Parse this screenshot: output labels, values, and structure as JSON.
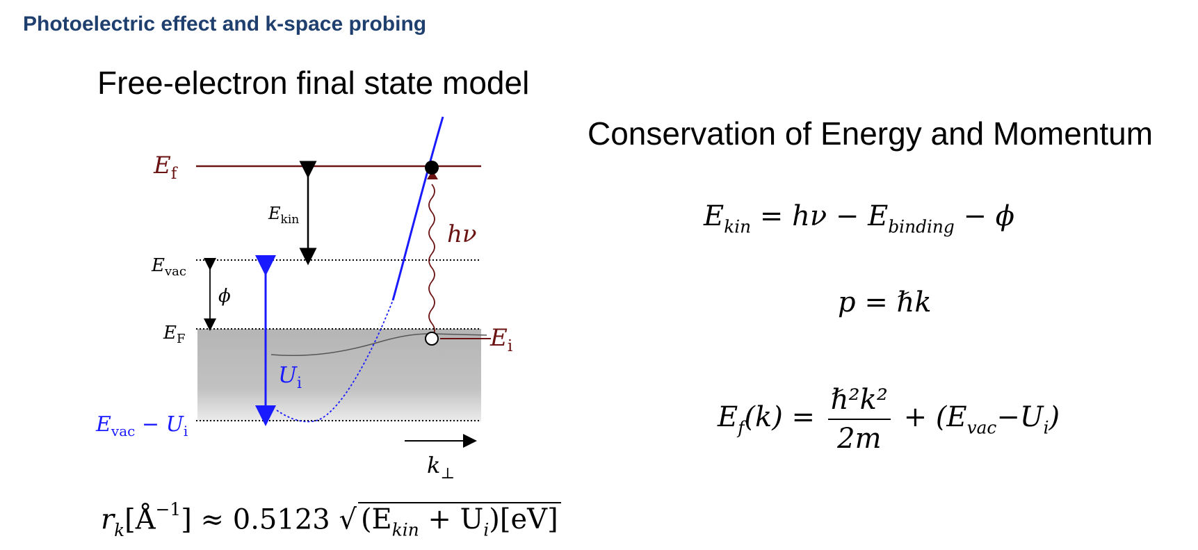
{
  "slide_title": "Photoelectric effect and k-space probing",
  "model_title": "Free-electron final state model",
  "conservation_title": "Conservation of Energy and Momentum",
  "diagram": {
    "ef_label": "E",
    "ef_sub": "f",
    "ekin_label": "E",
    "ekin_sub": "kin",
    "hv_label": "hν",
    "evac_label": "E",
    "evac_sub": "vac",
    "phi_label": "ϕ",
    "eF_label": "E",
    "eF_sub": "F",
    "ei_label": "E",
    "ei_sub": "i",
    "ui_label": "U",
    "ui_sub": "i",
    "evac_ui_label_a": "E",
    "evac_ui_label_a_sub": "vac",
    "evac_ui_minus": " − ",
    "evac_ui_label_b": "U",
    "evac_ui_label_b_sub": "i",
    "kperp_label": "k",
    "kperp_sub": "⊥",
    "colors": {
      "dark_red": "#6b1212",
      "blue": "#1a1aff",
      "band_gray": "#b8b8b8"
    }
  },
  "equations": {
    "eq1": {
      "lhs": "E",
      "lhs_sub": "kin",
      "rhs_a": " = hν − ",
      "rhs_b": "E",
      "rhs_b_sub": "binding",
      "rhs_c": " − ϕ"
    },
    "eq2": {
      "lhs": "p",
      "rhs": " = ℏk"
    },
    "eq3": {
      "lhs": "E",
      "lhs_sub": "f",
      "lhs_arg": "(k) = ",
      "num": "ℏ²k²",
      "den": "2m",
      "tail_a": "+ (E",
      "tail_a_sub": "vac",
      "tail_b": "−U",
      "tail_b_sub": "i",
      "tail_c": ")"
    }
  },
  "rk_formula": {
    "a": "r",
    "a_sub": "k",
    "b": "[Å",
    "b_sup": "−1",
    "c": "] ≈ 0.5123 ",
    "sqrt_a": "(E",
    "sqrt_a_sub": "kin",
    "sqrt_b": " + U",
    "sqrt_b_sub": "i",
    "sqrt_c": ")[eV]"
  }
}
